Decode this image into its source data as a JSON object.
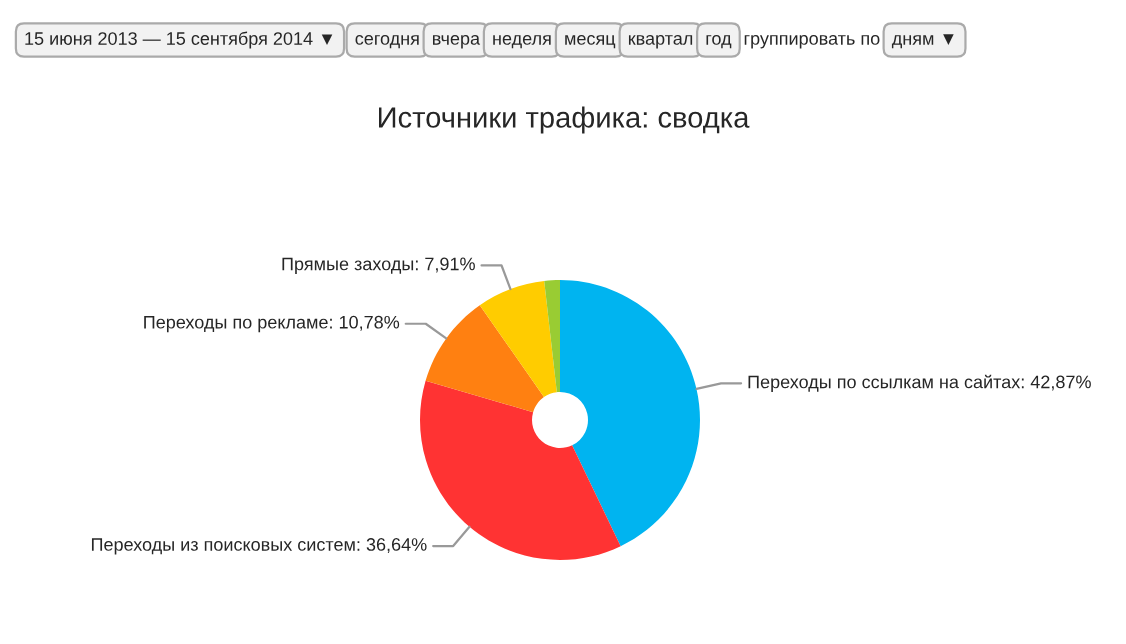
{
  "chart_data": {
    "type": "donut",
    "title": "Источники трафика: сводка",
    "categories": [
      "Переходы по ссылкам на сайтах",
      "Переходы из поисковых систем",
      "Переходы по рекламе",
      "Прямые заходы",
      null
    ],
    "values": [
      42.87,
      36.64,
      10.78,
      7.91,
      1.8
    ],
    "value_labels": [
      "42,87%",
      "36,64%",
      "10,78%",
      "7,91%",
      null
    ],
    "colors": [
      "#00b4f0",
      "#ff3333",
      "#ff8011",
      "#ffcc00",
      "#99cc33"
    ],
    "annotations": [
      "15 июня 2013 — 15 сентября 2014 ▼",
      "сегодня",
      "вчера",
      "неделя",
      "месяц",
      "квартал",
      "год",
      "группировать по",
      "дням ▼"
    ]
  }
}
